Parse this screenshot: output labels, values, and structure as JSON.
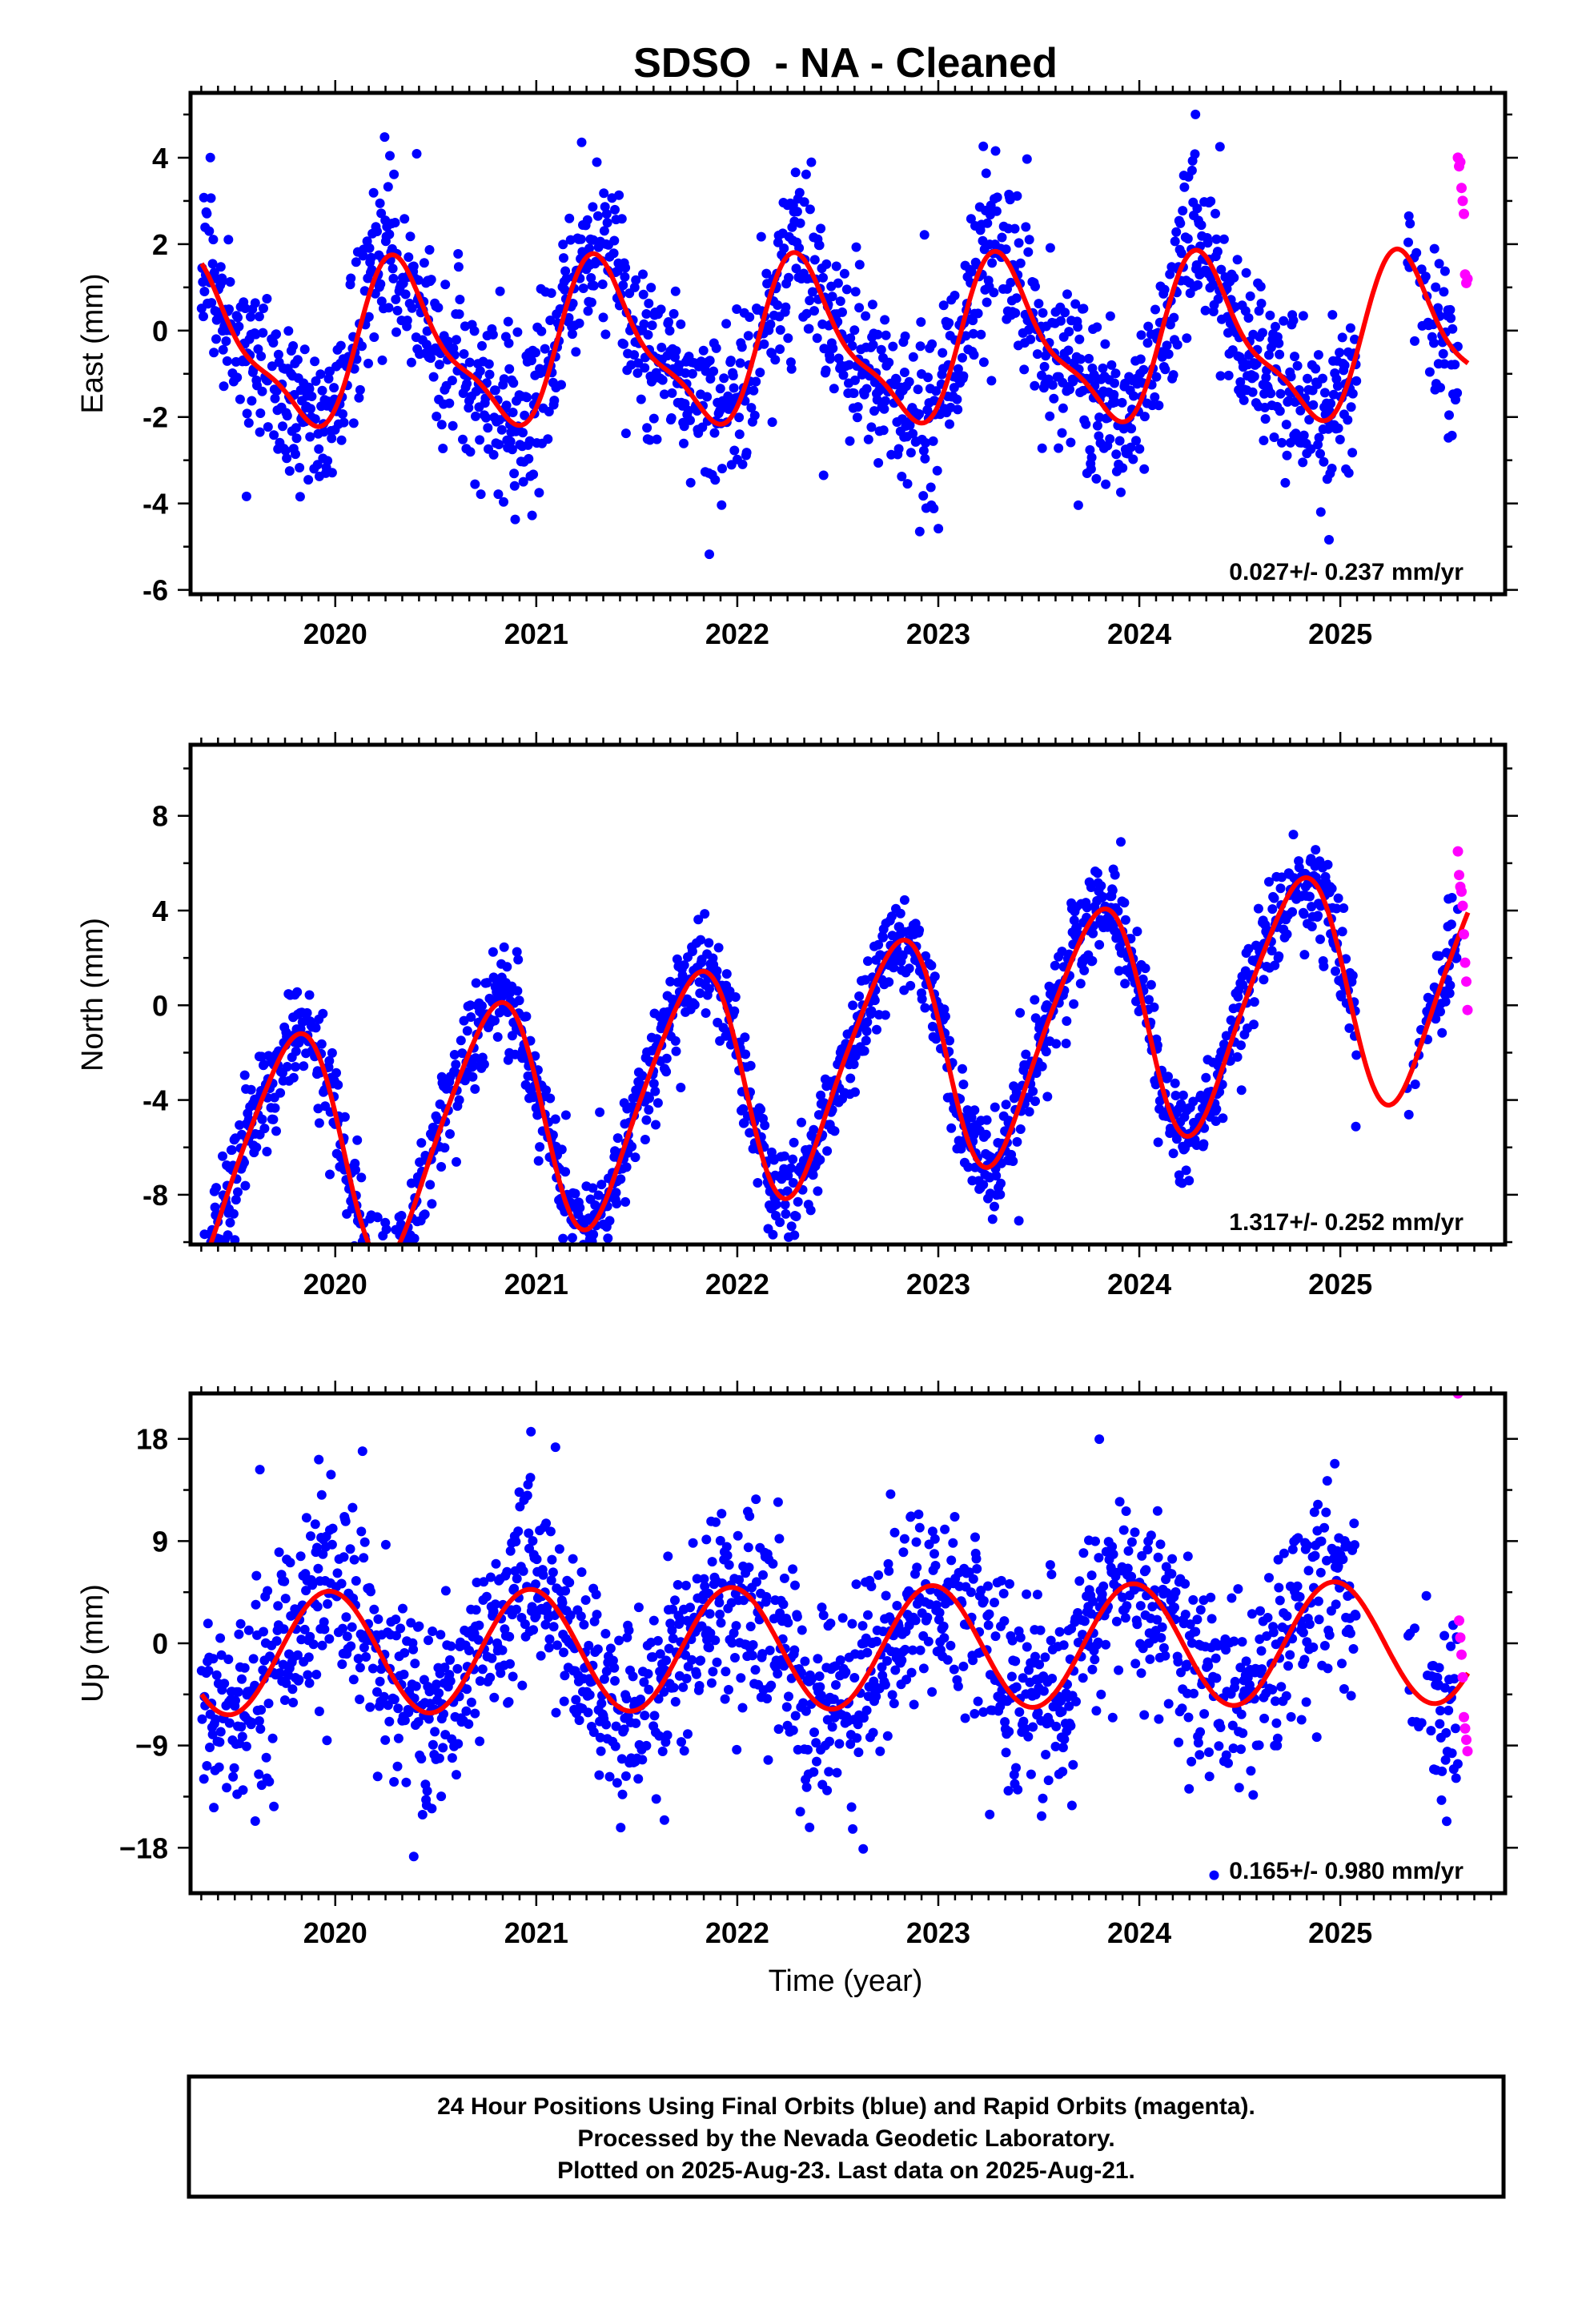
{
  "chart_data": {
    "type": "scatter",
    "title": "SDSO  - NA - Cleaned",
    "xlabel": "Time (year)",
    "xlim": [
      2019.28,
      2025.82
    ],
    "x_ticks": [
      "2020",
      "2021",
      "2022",
      "2023",
      "2024",
      "2025"
    ],
    "colors": {
      "final": "#0000ff",
      "rapid": "#ff00ff",
      "model": "#ff0000"
    },
    "legend_note": [
      "24 Hour Positions Using Final Orbits (blue) and Rapid Orbits (magenta).",
      "Processed by the Nevada Geodetic Laboratory.",
      "Plotted on 2025-Aug-23. Last data on 2025-Aug-21."
    ],
    "panels": [
      {
        "ylabel": "East (mm)",
        "ylim": [
          -6.1,
          5.5
        ],
        "y_ticks": [
          -6,
          -4,
          -2,
          0,
          2,
          4
        ],
        "y_tick_labels": [
          "-6",
          "-4",
          "-2",
          "0",
          "2",
          "4"
        ],
        "rate_label": "0.027+/- 0.237 mm/yr",
        "model": {
          "offset": -0.35,
          "trend": 0.027,
          "annual_amp": 1.75,
          "annual_phase_year": 0.08,
          "semi_amp": 0.55,
          "semi_phase_year": 0.62
        },
        "scatter_std": 0.95,
        "rapid_values": [
          4.0,
          3.8,
          3.9,
          3.3,
          3.0,
          2.7,
          1.3,
          1.1,
          1.2
        ]
      },
      {
        "ylabel": "North (mm)",
        "ylim": [
          -10.1,
          11.0
        ],
        "y_ticks": [
          -8,
          -4,
          0,
          4,
          8
        ],
        "y_tick_labels": [
          "-8",
          "-4",
          "0",
          "4",
          "8"
        ],
        "rate_label": "1.317+/- 0.252 mm/yr",
        "model": {
          "offset": -2.6,
          "trend": 1.317,
          "annual_amp": 4.9,
          "annual_phase_year": 0.53,
          "semi_amp": 0.7,
          "semi_phase_year": 0.3
        },
        "scatter_std": 1.0,
        "rapid_values": [
          6.5,
          5.5,
          5.0,
          4.8,
          4.2,
          3.0,
          1.8,
          1.0,
          -0.2
        ]
      },
      {
        "ylabel": "Up (mm)",
        "ylim": [
          -22,
          22
        ],
        "y_ticks": [
          -18,
          -9,
          0,
          9,
          18
        ],
        "y_tick_labels": [
          "−18",
          "−9",
          "0",
          "9",
          "18"
        ],
        "rate_label": "0.165+/- 0.980 mm/yr",
        "model": {
          "offset": -0.4,
          "trend": 0.165,
          "annual_amp": 5.4,
          "annual_phase_year": 0.72,
          "semi_amp": 0.0,
          "semi_phase_year": 0.0
        },
        "scatter_std": 4.2,
        "rapid_values": [
          22.0,
          2.0,
          0.5,
          -1.0,
          -3.0,
          -6.5,
          -7.5,
          -8.5,
          -9.5
        ]
      }
    ]
  }
}
